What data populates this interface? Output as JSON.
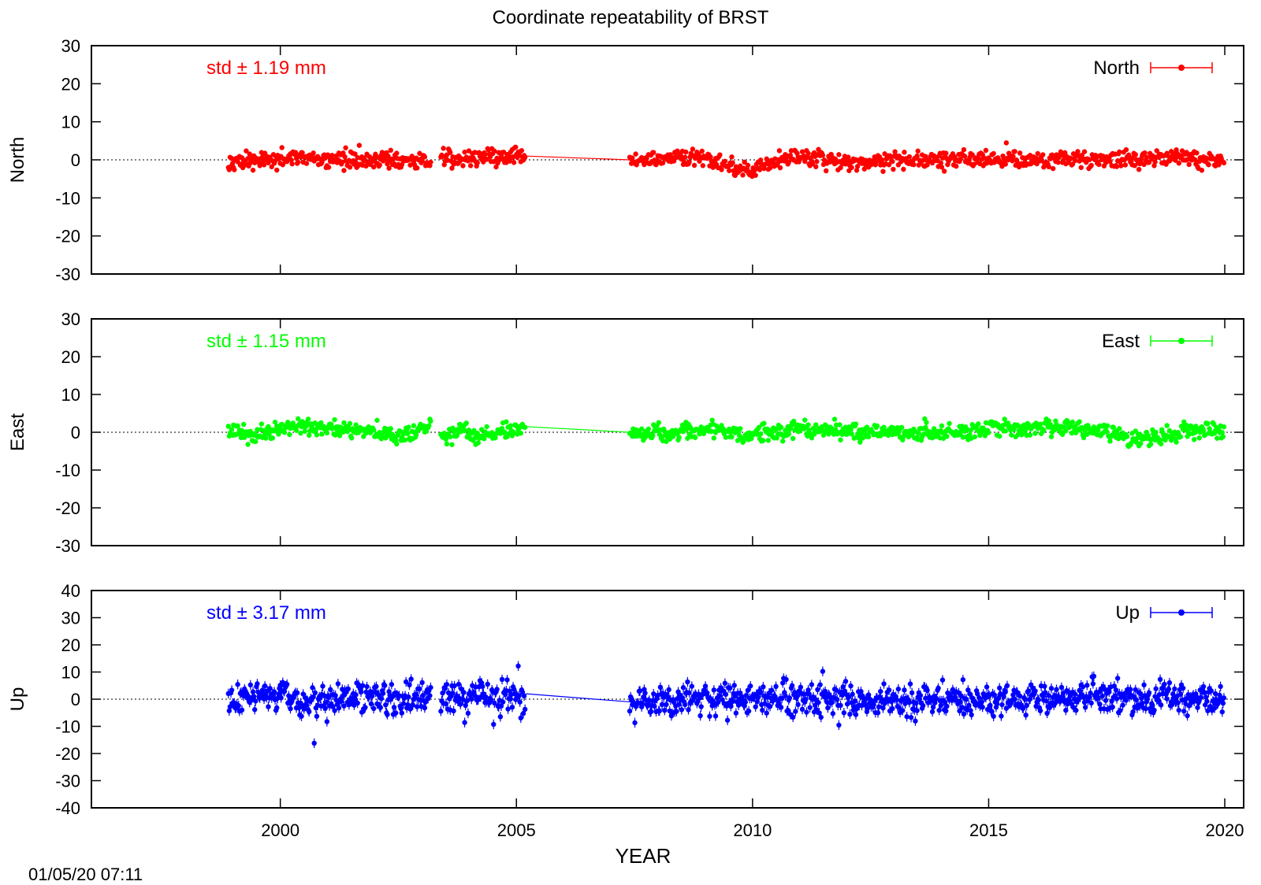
{
  "title": "Coordinate repeatability of BRST",
  "xlabel": "YEAR",
  "timestamp": "01/05/20 07:11",
  "chart_data": [
    {
      "type": "scatter",
      "name": "north",
      "ylabel": "North",
      "legend": "North",
      "legend_position": "top-right",
      "std_label": "std ± 1.19 mm",
      "color": "#ff0000",
      "xlim": [
        1996,
        2020.4
      ],
      "ylim": [
        -30,
        30
      ],
      "yticks": [
        -30,
        -20,
        -10,
        0,
        10,
        20,
        30
      ],
      "xticks": [
        2000,
        2005,
        2010,
        2015,
        2020
      ],
      "zero_line": true,
      "gap": [
        2005.3,
        2007.4
      ],
      "segments": [
        {
          "x": [
            1998.9,
            1999.5,
            2000.2,
            2000.8,
            2001.5,
            2002.2,
            2002.9,
            2003.2
          ],
          "y": [
            0,
            -0.5,
            0.3,
            0,
            -0.3,
            0,
            -0.5,
            -0.8
          ]
        },
        {
          "x": [
            2003.4,
            2003.7,
            2004.0,
            2004.4,
            2004.8,
            2005.2
          ],
          "y": [
            1.5,
            0,
            0.5,
            1,
            0.5,
            1
          ]
        },
        {
          "x": [
            2007.4,
            2008.0,
            2008.6,
            2009.2,
            2009.8,
            2010.4,
            2011.0,
            2011.6,
            2012.2,
            2012.8,
            2013.5,
            2014.2,
            2015.0,
            2015.8,
            2016.6,
            2017.4,
            2018.2,
            2018.8,
            2019.4,
            2020.0
          ],
          "y": [
            0,
            0,
            0.5,
            0,
            -3,
            -1,
            1,
            0,
            -1,
            0,
            0,
            0,
            0.5,
            0,
            0.5,
            0,
            0,
            1,
            0,
            0
          ]
        }
      ]
    },
    {
      "type": "scatter",
      "name": "east",
      "ylabel": "East",
      "legend": "East",
      "legend_position": "top-right",
      "std_label": "std ± 1.15 mm",
      "color": "#00ff00",
      "xlim": [
        1996,
        2020.4
      ],
      "ylim": [
        -30,
        30
      ],
      "yticks": [
        -30,
        -20,
        -10,
        0,
        10,
        20,
        30
      ],
      "xticks": [
        2000,
        2005,
        2010,
        2015,
        2020
      ],
      "zero_line": true,
      "gap": [
        2005.3,
        2007.4
      ],
      "segments": [
        {
          "x": [
            1998.9,
            1999.5,
            2000.2,
            2000.8,
            2001.5,
            2002.2,
            2002.9,
            2003.2
          ],
          "y": [
            0,
            -0.5,
            1.5,
            1,
            1,
            -0.5,
            0,
            2
          ]
        },
        {
          "x": [
            2003.4,
            2003.8,
            2004.2,
            2004.6,
            2005.0,
            2005.2
          ],
          "y": [
            -1.5,
            1,
            -1.5,
            0,
            1,
            1.5
          ]
        },
        {
          "x": [
            2007.4,
            2008.0,
            2008.6,
            2009.2,
            2009.8,
            2010.4,
            2011.0,
            2011.6,
            2012.2,
            2012.8,
            2013.5,
            2014.2,
            2015.0,
            2015.8,
            2016.6,
            2017.4,
            2018.0,
            2018.6,
            2019.2,
            2020.0
          ],
          "y": [
            0,
            0,
            0,
            1,
            -1,
            0,
            0.5,
            1,
            0,
            0.5,
            -0.5,
            0,
            1,
            0.5,
            1.5,
            0,
            -1.5,
            -1,
            0,
            0.5
          ]
        }
      ]
    },
    {
      "type": "scatter",
      "name": "up",
      "ylabel": "Up",
      "legend": "Up",
      "legend_position": "top-right",
      "std_label": "std ± 3.17 mm",
      "color": "#0000ff",
      "xlim": [
        1996,
        2020.4
      ],
      "ylim": [
        -40,
        40
      ],
      "yticks": [
        -40,
        -30,
        -20,
        -10,
        0,
        10,
        20,
        30,
        40
      ],
      "xticks": [
        2000,
        2005,
        2010,
        2015,
        2020
      ],
      "zero_line": true,
      "gap": [
        2005.3,
        2007.4
      ],
      "segments": [
        {
          "x": [
            1998.9,
            1999.5,
            2000.2,
            2000.8,
            2001.5,
            2002.2,
            2002.9,
            2003.2
          ],
          "y": [
            0,
            1,
            0,
            -1,
            0,
            0.5,
            0,
            0
          ]
        },
        {
          "x": [
            2003.4,
            2003.8,
            2004.2,
            2004.6,
            2005.0,
            2005.2
          ],
          "y": [
            1,
            2,
            1,
            0,
            1,
            2
          ]
        },
        {
          "x": [
            2007.4,
            2008.0,
            2008.6,
            2009.2,
            2009.8,
            2010.4,
            2011.0,
            2011.6,
            2012.2,
            2012.8,
            2013.5,
            2014.2,
            2015.0,
            2015.8,
            2016.6,
            2017.4,
            2018.2,
            2018.8,
            2019.4,
            2020.0
          ],
          "y": [
            -1,
            0,
            0,
            0.5,
            0,
            0,
            0,
            0.5,
            0,
            0,
            -0.5,
            0,
            -1,
            0,
            0.5,
            1,
            0,
            0,
            0.5,
            0
          ]
        }
      ]
    }
  ]
}
